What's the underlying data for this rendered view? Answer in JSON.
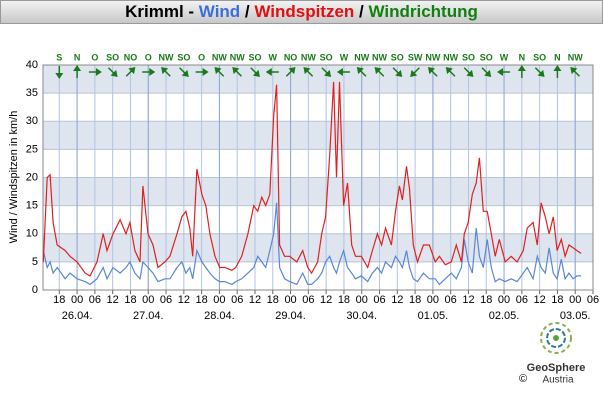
{
  "chart_data": {
    "type": "line",
    "title_parts": [
      {
        "text": "Krimml - ",
        "color": "#000000"
      },
      {
        "text": "Wind",
        "color": "#3b6fd8"
      },
      {
        "text": " / ",
        "color": "#000000"
      },
      {
        "text": "Windspitzen",
        "color": "#e01010"
      },
      {
        "text": " / ",
        "color": "#000000"
      },
      {
        "text": "Windrichtung",
        "color": "#108010"
      }
    ],
    "y_label": "Wind / Windspitzen in km/h",
    "x": [
      -11.4,
      -10.1,
      -9.1,
      -8.1,
      -6.7,
      -4.0,
      -2.4,
      0,
      2.7,
      4.4,
      6.7,
      8.8,
      10.1,
      12.1,
      14.5,
      16.5,
      17.8,
      19.5,
      21.2,
      22.2,
      23.9,
      25.6,
      27.3,
      29.6,
      31.3,
      33.7,
      35.3,
      36.7,
      38.0,
      39.0,
      40.4,
      42.1,
      43.4,
      44.8,
      46.5,
      48.1,
      49.8,
      52.2,
      53.5,
      55.5,
      57.6,
      59.6,
      60.9,
      62.3,
      63.6,
      65.0,
      66.3,
      67.3,
      68.3,
      70.0,
      71.7,
      74.1,
      76.1,
      77.8,
      79.1,
      81.1,
      82.5,
      83.8,
      85.2,
      86.5,
      87.5,
      88.5,
      89.9,
      91.2,
      92.6,
      93.9,
      95.9,
      98.0,
      99.6,
      101.3,
      102.7,
      104.0,
      106.0,
      107.4,
      108.7,
      109.7,
      111.1,
      112.1,
      113.4,
      114.8,
      116.8,
      118.8,
      120.8,
      122.2,
      124.2,
      126.2,
      127.9,
      129.6,
      130.6,
      131.9,
      133.3,
      134.6,
      135.7,
      137.0,
      138.3,
      139.7,
      141.0,
      142.4,
      144.4,
      146.4,
      148.4,
      150.5,
      151.8,
      153.8,
      155.2,
      156.5,
      157.9,
      159.2,
      160.6,
      161.9,
      163.3,
      164.6,
      165.9,
      167.3,
      168.6,
      170.0
    ],
    "series": [
      {
        "name": "Wind",
        "color": "#5a86d6",
        "values": [
          7,
          4,
          5,
          3,
          4,
          2,
          3,
          2,
          1.5,
          1,
          2,
          4,
          2,
          4,
          3,
          4,
          5,
          3,
          2,
          5,
          4,
          3,
          1.5,
          2,
          2,
          4,
          5,
          3,
          4,
          2,
          7,
          5,
          4,
          3,
          2,
          1.5,
          1.5,
          1,
          1.5,
          2,
          3,
          4,
          6,
          5,
          4,
          7,
          10,
          15.5,
          4,
          2,
          1.5,
          1,
          3,
          1,
          1,
          2,
          3,
          5,
          6,
          4,
          3,
          5,
          7,
          4,
          3,
          2,
          2.5,
          1.5,
          3,
          4,
          3,
          5,
          4,
          6,
          5,
          4,
          7,
          4,
          2,
          1.5,
          3,
          2,
          2,
          1,
          2,
          3,
          2,
          4,
          9,
          5,
          3,
          11,
          6,
          4,
          9,
          4,
          1.5,
          2,
          1.5,
          2,
          1.5,
          3,
          4,
          2,
          6,
          4,
          3,
          7.5,
          3,
          2,
          5.5,
          2,
          3,
          2,
          2.5,
          2.5
        ]
      },
      {
        "name": "Windspitzen",
        "color": "#e02020",
        "values": [
          5,
          20,
          20.5,
          12,
          8,
          7,
          6,
          5,
          3,
          2.5,
          5,
          10,
          7,
          10,
          12.5,
          10,
          12,
          7,
          5,
          18.5,
          10,
          8,
          4,
          5,
          6,
          10,
          13,
          14,
          11,
          6,
          21.5,
          17,
          15,
          10,
          6,
          4,
          4,
          3.5,
          4,
          6,
          10,
          15,
          14,
          16.5,
          15,
          17,
          31,
          36.5,
          8,
          6,
          6,
          5,
          7,
          4,
          3,
          5,
          10,
          13,
          24,
          37,
          20,
          37,
          15,
          19,
          8,
          6,
          6,
          4,
          7,
          10,
          8,
          11,
          8,
          14,
          18.5,
          16,
          22,
          18,
          8,
          5,
          8,
          8,
          5,
          6,
          4.5,
          5,
          8,
          5,
          10,
          12,
          17,
          19,
          23.5,
          14,
          14,
          10,
          6,
          9,
          5,
          6,
          5,
          7,
          11,
          12,
          8,
          15.5,
          13,
          10,
          13,
          7,
          9,
          6,
          8,
          7.5,
          7,
          6.5
        ]
      }
    ],
    "xlim": [
      -11.5,
      174
    ],
    "xticks": [
      {
        "value": -6,
        "label": "18"
      },
      {
        "value": 0,
        "label": "00"
      },
      {
        "value": 6,
        "label": "06"
      },
      {
        "value": 12,
        "label": "12"
      },
      {
        "value": 18,
        "label": "18"
      },
      {
        "value": 24,
        "label": "00"
      },
      {
        "value": 30,
        "label": "06"
      },
      {
        "value": 36,
        "label": "12"
      },
      {
        "value": 42,
        "label": "18"
      },
      {
        "value": 48,
        "label": "00"
      },
      {
        "value": 54,
        "label": "06"
      },
      {
        "value": 60,
        "label": "12"
      },
      {
        "value": 66,
        "label": "18"
      },
      {
        "value": 72,
        "label": "00"
      },
      {
        "value": 78,
        "label": "06"
      },
      {
        "value": 84,
        "label": "12"
      },
      {
        "value": 90,
        "label": "18"
      },
      {
        "value": 96,
        "label": "00"
      },
      {
        "value": 102,
        "label": "06"
      },
      {
        "value": 108,
        "label": "12"
      },
      {
        "value": 114,
        "label": "18"
      },
      {
        "value": 120,
        "label": "00"
      },
      {
        "value": 126,
        "label": "06"
      },
      {
        "value": 132,
        "label": "12"
      },
      {
        "value": 138,
        "label": "18"
      },
      {
        "value": 144,
        "label": "00"
      },
      {
        "value": 150,
        "label": "06"
      },
      {
        "value": 156,
        "label": "12"
      },
      {
        "value": 162,
        "label": "18"
      },
      {
        "value": 168,
        "label": "00"
      },
      {
        "value": 174,
        "label": "06"
      }
    ],
    "date_ticks": [
      {
        "value": 0,
        "label": "26.04."
      },
      {
        "value": 24,
        "label": "27.04."
      },
      {
        "value": 48,
        "label": "28.04."
      },
      {
        "value": 72,
        "label": "29.04."
      },
      {
        "value": 96,
        "label": "30.04."
      },
      {
        "value": 120,
        "label": "01.05."
      },
      {
        "value": 144,
        "label": "02.05."
      },
      {
        "value": 168,
        "label": "03.05."
      }
    ],
    "ylim": [
      0,
      40
    ],
    "yticks": [
      0,
      5,
      10,
      15,
      20,
      25,
      30,
      35,
      40
    ],
    "grid": true,
    "directions": {
      "color": "#1a7a1a",
      "x": [
        -6,
        0,
        6,
        12,
        18,
        24,
        30,
        36,
        42,
        48,
        54,
        60,
        66,
        72,
        78,
        84,
        90,
        96,
        102,
        108,
        114,
        120,
        126,
        132,
        138,
        144,
        150,
        156,
        162,
        168
      ],
      "labels": [
        "S",
        "N",
        "O",
        "SO",
        "NO",
        "O",
        "NW",
        "SO",
        "O",
        "NW",
        "NW",
        "SO",
        "W",
        "NO",
        "NW",
        "SO",
        "W",
        "NW",
        "NW",
        "SO",
        "SW",
        "NW",
        "NW",
        "SO",
        "SO",
        "W",
        "N",
        "SO",
        "N",
        "NW"
      ]
    },
    "logo": {
      "name": "GeoSphere",
      "sub": "Austria",
      "copyright": "©"
    }
  }
}
